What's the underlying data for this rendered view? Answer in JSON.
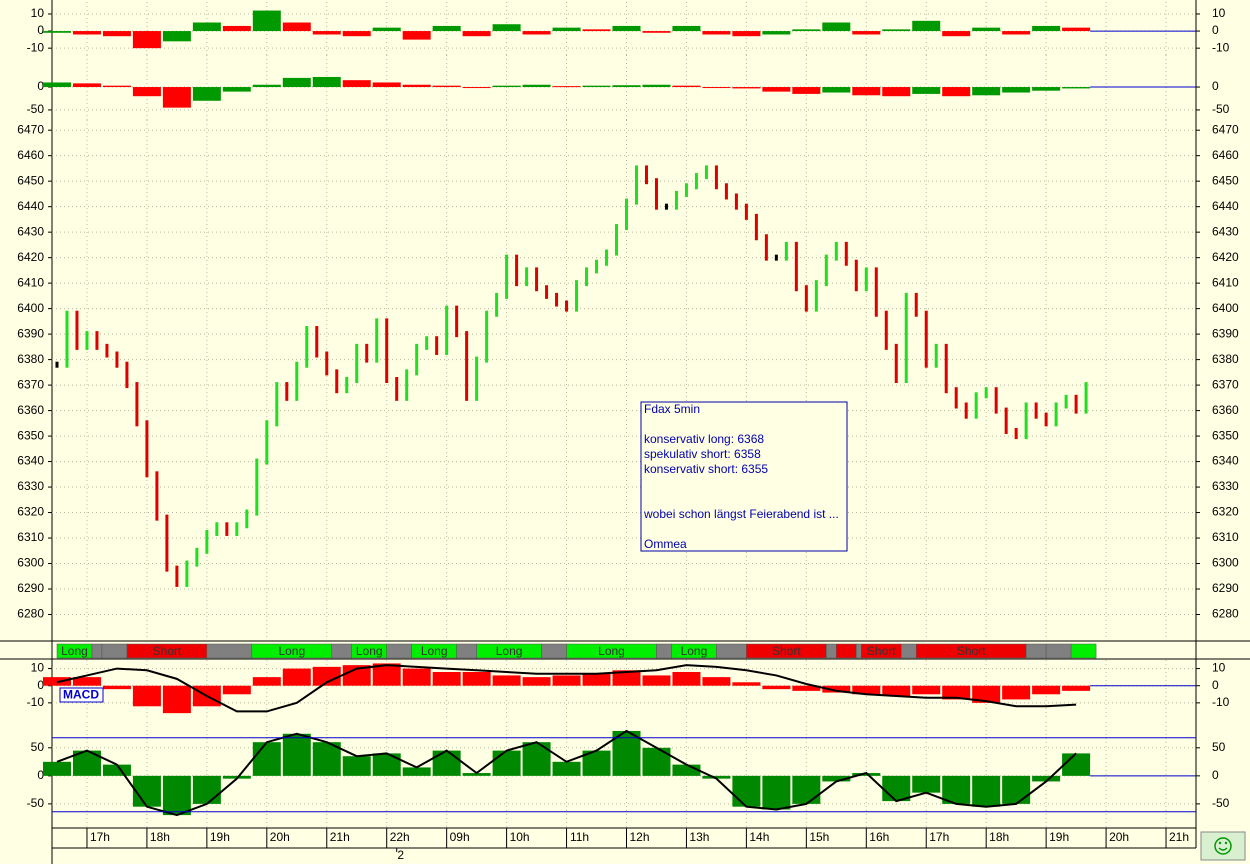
{
  "chart_data": [
    {
      "type": "bar",
      "ylim": [
        -14,
        17
      ],
      "yticks": [
        10,
        0,
        -10
      ],
      "x": [
        1,
        7,
        13,
        19,
        25,
        31,
        37,
        43,
        49,
        55,
        61,
        67,
        73,
        79,
        85,
        91,
        97,
        103,
        109,
        115,
        121,
        127,
        133,
        139,
        145,
        151,
        157,
        163,
        169,
        175,
        181,
        187,
        193,
        199,
        205
      ],
      "values": [
        -1,
        -2,
        -3,
        -10,
        -6,
        5,
        3,
        12,
        5,
        -2,
        -3,
        2,
        -5,
        3,
        -3,
        4,
        -2,
        2,
        1,
        3,
        -1,
        3,
        -2,
        -3,
        -2,
        1,
        5,
        -2,
        1,
        6,
        -3,
        2,
        -2,
        3,
        2
      ],
      "up_color": "#009900",
      "down_color": "#ff0000",
      "zero_color": "#0000cc"
    },
    {
      "type": "bar",
      "ylim": [
        -72,
        70
      ],
      "yticks": [
        0,
        -50
      ],
      "x": [
        1,
        7,
        13,
        19,
        25,
        31,
        37,
        43,
        49,
        55,
        61,
        67,
        73,
        79,
        85,
        91,
        97,
        103,
        109,
        115,
        121,
        127,
        133,
        139,
        145,
        151,
        157,
        163,
        169,
        175,
        181,
        187,
        193,
        199,
        205
      ],
      "values": [
        10,
        8,
        3,
        -20,
        -45,
        -30,
        -10,
        5,
        20,
        22,
        15,
        10,
        5,
        3,
        -2,
        3,
        5,
        2,
        3,
        4,
        5,
        3,
        -1,
        -3,
        -10,
        -15,
        -12,
        -18,
        -20,
        -15,
        -20,
        -18,
        -12,
        -8,
        -3
      ],
      "up_color": "#009900",
      "down_color": "#ff0000",
      "zero_color": "#0000cc"
    },
    {
      "type": "price",
      "ylim": [
        6270,
        6474
      ],
      "yticks": [
        6280,
        6290,
        6300,
        6310,
        6320,
        6330,
        6340,
        6350,
        6360,
        6370,
        6380,
        6390,
        6400,
        6410,
        6420,
        6430,
        6440,
        6450,
        6460,
        6470
      ],
      "x": [
        1,
        3,
        5,
        7,
        9,
        11,
        13,
        15,
        17,
        19,
        21,
        23,
        25,
        27,
        29,
        31,
        33,
        35,
        37,
        39,
        41,
        43,
        45,
        47,
        49,
        51,
        53,
        55,
        57,
        59,
        61,
        63,
        65,
        67,
        69,
        71,
        73,
        75,
        77,
        79,
        81,
        83,
        85,
        87,
        89,
        91,
        93,
        95,
        97,
        99,
        101,
        103,
        105,
        107,
        109,
        111,
        113,
        115,
        117,
        119,
        121,
        123,
        125,
        127,
        129,
        131,
        133,
        135,
        137,
        139,
        141,
        143,
        145,
        147,
        149,
        151,
        153,
        155,
        157,
        159,
        161,
        163,
        165,
        167,
        169,
        171,
        173,
        175,
        177,
        179,
        181,
        183,
        185,
        187,
        189,
        191,
        193,
        195,
        197,
        199,
        201,
        203,
        205,
        207
      ],
      "values": [
        6378,
        6398,
        6385,
        6390,
        6385,
        6382,
        6378,
        6370,
        6355,
        6335,
        6318,
        6298,
        6292,
        6300,
        6305,
        6312,
        6315,
        6312,
        6315,
        6320,
        6340,
        6355,
        6370,
        6365,
        6378,
        6392,
        6382,
        6375,
        6368,
        6372,
        6385,
        6380,
        6395,
        6372,
        6365,
        6375,
        6385,
        6388,
        6383,
        6400,
        6390,
        6365,
        6380,
        6398,
        6405,
        6420,
        6410,
        6415,
        6408,
        6405,
        6402,
        6400,
        6410,
        6415,
        6418,
        6422,
        6432,
        6442,
        6455,
        6450,
        6440,
        6440,
        6445,
        6448,
        6452,
        6455,
        6448,
        6444,
        6440,
        6436,
        6428,
        6420,
        6420,
        6425,
        6408,
        6400,
        6410,
        6420,
        6425,
        6418,
        6408,
        6415,
        6398,
        6385,
        6372,
        6405,
        6398,
        6378,
        6385,
        6368,
        6362,
        6358,
        6366,
        6368,
        6360,
        6352,
        6350,
        6362,
        6358,
        6355,
        6362,
        6365,
        6360,
        6370
      ],
      "up_color": "#22dd22",
      "down_color": "#dd0000",
      "flat_color": "#000000",
      "annotation": {
        "lines": [
          "Fdax 5min",
          "konservativ long: 6368",
          "spekulativ short: 6358",
          "konservativ short: 6355",
          "wobei schon längst Feierabend ist ...",
          "Ommea"
        ],
        "color": "#0000aa"
      }
    },
    {
      "type": "timeline",
      "segments": [
        {
          "start": 1,
          "end": 8,
          "color": "#00ee00",
          "label": "Long"
        },
        {
          "start": 8,
          "end": 10,
          "color": "#808080"
        },
        {
          "start": 10,
          "end": 15,
          "color": "#808080"
        },
        {
          "start": 15,
          "end": 31,
          "color": "#ee0000",
          "label": "Short"
        },
        {
          "start": 31,
          "end": 40,
          "color": "#808080"
        },
        {
          "start": 40,
          "end": 56,
          "color": "#00ee00",
          "label": "Long"
        },
        {
          "start": 56,
          "end": 60,
          "color": "#808080"
        },
        {
          "start": 60,
          "end": 67,
          "color": "#00ee00",
          "label": "Long"
        },
        {
          "start": 67,
          "end": 72,
          "color": "#808080"
        },
        {
          "start": 72,
          "end": 81,
          "color": "#00ee00",
          "label": "Long"
        },
        {
          "start": 81,
          "end": 85,
          "color": "#808080"
        },
        {
          "start": 85,
          "end": 98,
          "color": "#00ee00",
          "label": "Long"
        },
        {
          "start": 98,
          "end": 103,
          "color": "#808080"
        },
        {
          "start": 103,
          "end": 121,
          "color": "#00ee00",
          "label": "Long"
        },
        {
          "start": 121,
          "end": 124,
          "color": "#808080"
        },
        {
          "start": 124,
          "end": 133,
          "color": "#00ee00",
          "label": "Long"
        },
        {
          "start": 133,
          "end": 139,
          "color": "#808080"
        },
        {
          "start": 139,
          "end": 155,
          "color": "#ee0000",
          "label": "Short"
        },
        {
          "start": 155,
          "end": 157,
          "color": "#808080"
        },
        {
          "start": 157,
          "end": 161,
          "color": "#ee0000"
        },
        {
          "start": 161,
          "end": 162,
          "color": "#808080"
        },
        {
          "start": 162,
          "end": 170,
          "color": "#ee0000",
          "label": "Short"
        },
        {
          "start": 170,
          "end": 173,
          "color": "#808080"
        },
        {
          "start": 173,
          "end": 195,
          "color": "#ee0000",
          "label": "Short"
        },
        {
          "start": 195,
          "end": 199,
          "color": "#808080"
        },
        {
          "start": 199,
          "end": 204,
          "color": "#808080"
        },
        {
          "start": 204,
          "end": 209,
          "color": "#00ee00"
        }
      ]
    },
    {
      "type": "bar",
      "label": "MACD",
      "ylim": [
        -20,
        15
      ],
      "yticks": [
        10,
        0,
        -10
      ],
      "x": [
        1,
        7,
        13,
        19,
        25,
        31,
        37,
        43,
        49,
        55,
        61,
        67,
        73,
        79,
        85,
        91,
        97,
        103,
        109,
        115,
        121,
        127,
        133,
        139,
        145,
        151,
        157,
        163,
        169,
        175,
        181,
        187,
        193,
        199,
        205
      ],
      "values": [
        5,
        5,
        -2,
        -12,
        -16,
        -12,
        -5,
        5,
        10,
        11,
        12,
        13,
        10,
        8,
        8,
        6,
        5,
        6,
        7,
        9,
        6,
        8,
        5,
        2,
        -2,
        -3,
        -4,
        -5,
        -6,
        -5,
        -8,
        -10,
        -8,
        -5,
        -3
      ],
      "color": "#ff0000",
      "zero_color": "#0000cc",
      "line": {
        "values": [
          2,
          6,
          10,
          9,
          4,
          -6,
          -15,
          -15,
          -10,
          2,
          10,
          12,
          11,
          10,
          9,
          8,
          7,
          7,
          7,
          8,
          9,
          12,
          11,
          9,
          6,
          1,
          -3,
          -5,
          -6,
          -7,
          -7,
          -9,
          -12,
          -12,
          -11
        ],
        "color": "#000000"
      }
    },
    {
      "type": "bar",
      "ylim": [
        -93,
        96
      ],
      "yticks": [
        50,
        0,
        -50
      ],
      "x": [
        1,
        7,
        13,
        19,
        25,
        31,
        37,
        43,
        49,
        55,
        61,
        67,
        73,
        79,
        85,
        91,
        97,
        103,
        109,
        115,
        121,
        127,
        133,
        139,
        145,
        151,
        157,
        163,
        169,
        175,
        181,
        187,
        193,
        199,
        205
      ],
      "values": [
        25,
        45,
        20,
        -55,
        -70,
        -50,
        -5,
        60,
        75,
        60,
        35,
        40,
        15,
        45,
        5,
        45,
        60,
        25,
        45,
        80,
        50,
        20,
        -5,
        -55,
        -60,
        -50,
        -10,
        5,
        -45,
        -30,
        -50,
        -55,
        -50,
        -10,
        40
      ],
      "color": "#008800",
      "line_color": "#000000",
      "zero_color": "#0000cc",
      "hlines": [
        68,
        -64
      ],
      "hline_color": "#0000cc",
      "xlim": [
        0,
        229
      ],
      "xticks": [
        {
          "value": 7,
          "label": "17h"
        },
        {
          "value": 19,
          "label": "18h"
        },
        {
          "value": 31,
          "label": "19h"
        },
        {
          "value": 43,
          "label": "20h"
        },
        {
          "value": 55,
          "label": "21h"
        },
        {
          "value": 67,
          "label": "22h"
        },
        {
          "value": 79,
          "label": "09h"
        },
        {
          "value": 91,
          "label": "10h"
        },
        {
          "value": 103,
          "label": "11h"
        },
        {
          "value": 115,
          "label": "12h"
        },
        {
          "value": 127,
          "label": "13h"
        },
        {
          "value": 139,
          "label": "14h"
        },
        {
          "value": 151,
          "label": "15h"
        },
        {
          "value": 163,
          "label": "16h"
        },
        {
          "value": 175,
          "label": "17h"
        },
        {
          "value": 187,
          "label": "18h"
        },
        {
          "value": 199,
          "label": "19h"
        },
        {
          "value": 211,
          "label": "20h"
        },
        {
          "value": 223,
          "label": "21h"
        }
      ],
      "day_ticks": [
        {
          "value": 69,
          "label": "2"
        }
      ]
    }
  ]
}
